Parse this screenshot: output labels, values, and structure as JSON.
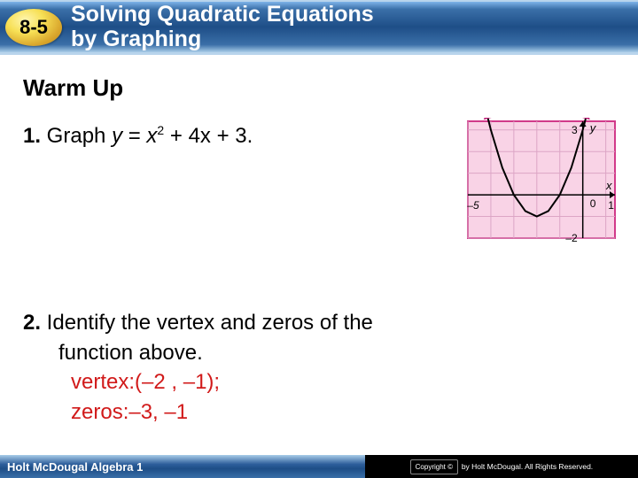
{
  "header": {
    "lesson_number": "8-5",
    "title_line1": "Solving Quadratic Equations",
    "title_line2": "by Graphing"
  },
  "content": {
    "warmup_heading": "Warm Up",
    "q1": {
      "number": "1.",
      "prefix": " Graph ",
      "var_y": "y",
      "equals": " = ",
      "var_x": "x",
      "exp": "2",
      "rest": " + 4x + 3."
    },
    "q2": {
      "number": "2.",
      "text_a": " Identify the vertex and zeros of the",
      "text_b": "function above.",
      "ans1": "vertex:(–2 , –1);",
      "ans2": "zeros:–3, –1"
    }
  },
  "graph": {
    "bg": "#f9d3e6",
    "border": "#d13a8a",
    "grid": "#dca5c5",
    "axis_color": "#000000",
    "curve_color": "#000000",
    "label_color": "#000000",
    "arrow_color": "#c02078",
    "x_min": -5,
    "x_max": 1.4,
    "y_min": -2,
    "y_max": 3.4,
    "x_ticks": [
      -5,
      1
    ],
    "y_ticks": [
      -2,
      3
    ],
    "zero_label": "0",
    "axis_x_label": "x",
    "axis_y_label": "y",
    "vertex": [
      -2,
      -1
    ],
    "curve_points": [
      [
        -4.2,
        3.84
      ],
      [
        -4,
        3
      ],
      [
        -3.5,
        1.25
      ],
      [
        -3,
        0
      ],
      [
        -2.5,
        -0.75
      ],
      [
        -2,
        -1
      ],
      [
        -1.5,
        -0.75
      ],
      [
        -1,
        0
      ],
      [
        -0.5,
        1.25
      ],
      [
        0,
        3
      ],
      [
        0.2,
        3.84
      ]
    ]
  },
  "footer": {
    "book": "Holt McDougal Algebra 1",
    "copyright_label": "Copyright ©",
    "copyright_text": "by Holt McDougal. All Rights Reserved."
  }
}
